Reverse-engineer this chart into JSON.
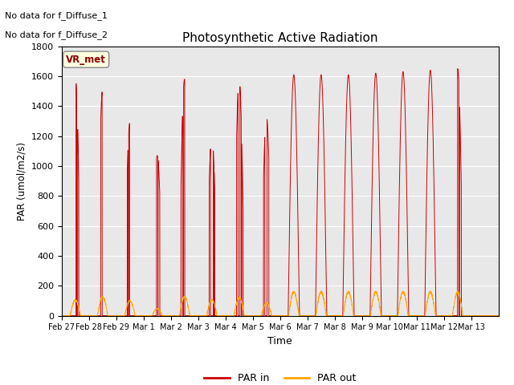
{
  "title": "Photosynthetic Active Radiation",
  "xlabel": "Time",
  "ylabel": "PAR (umol/m2/s)",
  "ylim": [
    0,
    1800
  ],
  "bg_color": "#e8e8e8",
  "annotations": [
    "No data for f_Diffuse_1",
    "No data for f_Diffuse_2"
  ],
  "legend_label1": "PAR in",
  "legend_label2": "PAR out",
  "legend_box_label": "VR_met",
  "x_ticks": [
    "Feb 27",
    "Feb 28",
    "Feb 29",
    "Mar 1",
    "Mar 2",
    "Mar 3",
    "Mar 4",
    "Mar 5",
    "Mar 6",
    "Mar 7",
    "Mar 8",
    "Mar 9",
    "Mar 10",
    "Mar 11",
    "Mar 12",
    "Mar 13"
  ],
  "par_in_color": "#cc0000",
  "par_out_color": "#ffa500",
  "total_days": 16
}
